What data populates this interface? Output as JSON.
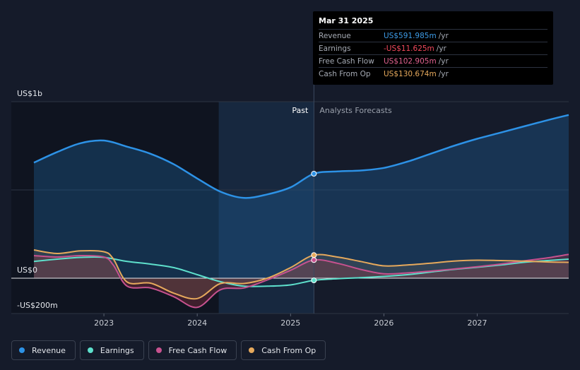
{
  "tooltip": {
    "date": "Mar 31 2025",
    "unit": "/yr",
    "rows": [
      {
        "label": "Revenue",
        "value": "US$591.985m",
        "color": "#3d9be6"
      },
      {
        "label": "Earnings",
        "value": "-US$11.625m",
        "color": "#f2495c"
      },
      {
        "label": "Free Cash Flow",
        "value": "US$102.905m",
        "color": "#e0628f"
      },
      {
        "label": "Cash From Op",
        "value": "US$130.674m",
        "color": "#e6a95c"
      }
    ]
  },
  "zones": {
    "past": "Past",
    "forecast": "Analysts Forecasts"
  },
  "legend": [
    {
      "label": "Revenue",
      "color": "#2d92e6"
    },
    {
      "label": "Earnings",
      "color": "#5ee0cc"
    },
    {
      "label": "Free Cash Flow",
      "color": "#c7528f"
    },
    {
      "label": "Cash From Op",
      "color": "#e6a95c"
    }
  ],
  "chart_data": {
    "type": "line",
    "title": "",
    "unit": "US$ millions",
    "ylim": [
      -200,
      1000
    ],
    "xlim": [
      2022.25,
      2027.98
    ],
    "y_tick_labels": [
      {
        "value": 1000,
        "label": "US$1b"
      },
      {
        "value": 0,
        "label": "US$0"
      },
      {
        "value": -200,
        "label": "-US$200m"
      }
    ],
    "x_ticks": [
      2023,
      2024,
      2025,
      2026,
      2027
    ],
    "x_tick_labels": [
      "2023",
      "2024",
      "2025",
      "2026",
      "2027"
    ],
    "past_end": 2025.25,
    "shaded_start": 2024.23,
    "highlight_x": 2025.25,
    "series": [
      {
        "name": "Revenue",
        "color": "#2d92e6",
        "x": [
          2022.25,
          2022.5,
          2022.75,
          2023.0,
          2023.25,
          2023.5,
          2023.75,
          2024.0,
          2024.25,
          2024.5,
          2024.75,
          2025.0,
          2025.25,
          2025.5,
          2025.75,
          2026.0,
          2026.25,
          2026.5,
          2026.75,
          2027.0,
          2027.25,
          2027.5,
          2027.75,
          2027.98
        ],
        "values": [
          655,
          715,
          765,
          780,
          745,
          705,
          645,
          565,
          490,
          455,
          475,
          515,
          592,
          605,
          610,
          625,
          660,
          705,
          750,
          790,
          825,
          860,
          895,
          925
        ]
      },
      {
        "name": "Earnings",
        "color": "#5ee0cc",
        "x": [
          2022.25,
          2022.5,
          2022.75,
          2023.0,
          2023.25,
          2023.5,
          2023.75,
          2024.0,
          2024.25,
          2024.5,
          2024.75,
          2025.0,
          2025.25,
          2025.5,
          2025.75,
          2026.0,
          2026.25,
          2026.5,
          2026.75,
          2027.0,
          2027.25,
          2027.5,
          2027.75,
          2027.98
        ],
        "values": [
          95,
          108,
          118,
          118,
          95,
          80,
          60,
          20,
          -20,
          -45,
          -45,
          -38,
          -12,
          -3,
          3,
          10,
          20,
          35,
          50,
          62,
          75,
          90,
          100,
          108
        ]
      },
      {
        "name": "Free Cash Flow",
        "color": "#c7528f",
        "x": [
          2022.25,
          2022.5,
          2022.75,
          2023.0,
          2023.1,
          2023.25,
          2023.5,
          2023.75,
          2024.0,
          2024.25,
          2024.5,
          2024.75,
          2025.0,
          2025.25,
          2025.5,
          2025.75,
          2026.0,
          2026.25,
          2026.5,
          2026.75,
          2027.0,
          2027.25,
          2027.5,
          2027.75,
          2027.98
        ],
        "values": [
          128,
          120,
          128,
          120,
          75,
          -45,
          -55,
          -105,
          -165,
          -65,
          -55,
          -10,
          45,
          103,
          85,
          50,
          25,
          30,
          40,
          52,
          65,
          80,
          98,
          115,
          135
        ]
      },
      {
        "name": "Cash From Op",
        "color": "#e6a95c",
        "x": [
          2022.25,
          2022.5,
          2022.75,
          2023.0,
          2023.1,
          2023.25,
          2023.5,
          2023.75,
          2024.0,
          2024.25,
          2024.5,
          2024.75,
          2025.0,
          2025.25,
          2025.5,
          2025.75,
          2026.0,
          2026.25,
          2026.5,
          2026.75,
          2027.0,
          2027.25,
          2027.5,
          2027.75,
          2027.98
        ],
        "values": [
          160,
          140,
          155,
          150,
          110,
          -22,
          -28,
          -85,
          -115,
          -30,
          -30,
          0,
          60,
          131,
          120,
          95,
          70,
          75,
          85,
          97,
          102,
          100,
          97,
          92,
          90
        ]
      }
    ]
  }
}
